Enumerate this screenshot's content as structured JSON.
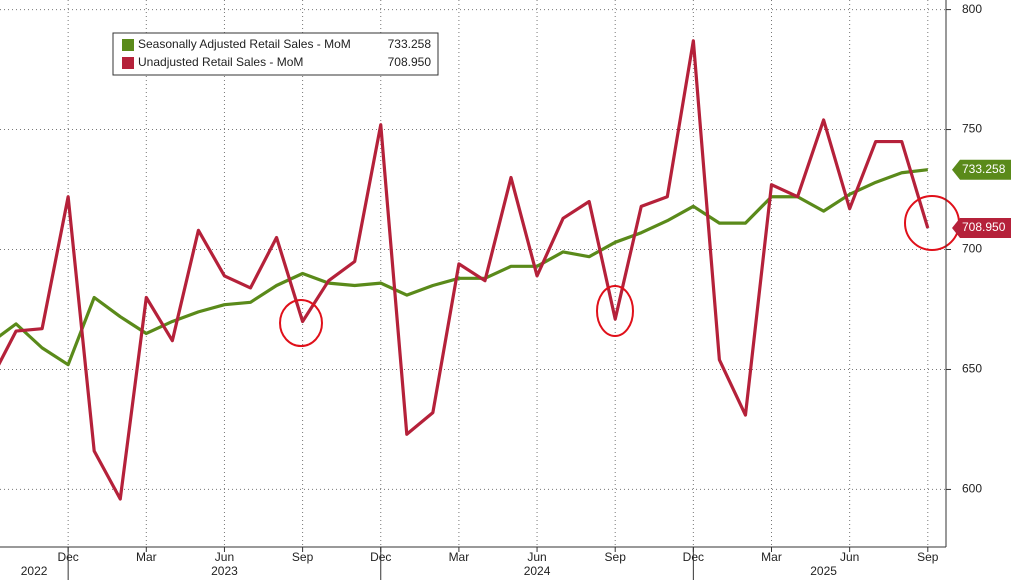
{
  "chart_data": {
    "type": "line",
    "categories": [
      null,
      null,
      null,
      "Dec",
      null,
      null,
      "Mar",
      null,
      null,
      "Jun",
      null,
      null,
      "Sep",
      null,
      null,
      "Dec",
      null,
      null,
      "Mar",
      null,
      null,
      "Jun",
      null,
      null,
      "Sep",
      null,
      null,
      "Dec",
      null,
      null,
      "Mar",
      null,
      null,
      "Jun",
      null,
      null,
      "Sep"
    ],
    "years": [
      "2022",
      "2023",
      "2024",
      "2025"
    ],
    "series": [
      {
        "name": "Seasonally Adjusted Retail Sales - MoM",
        "color": "#5a8a1a",
        "values": [
          661,
          669,
          659,
          652,
          680,
          672,
          665,
          670,
          674,
          677,
          678,
          685,
          690,
          686,
          685,
          686,
          681,
          685,
          688,
          688,
          693,
          693,
          699,
          697,
          703,
          707,
          712,
          718,
          711,
          711,
          722,
          722,
          716,
          723,
          728,
          732,
          733.258
        ]
      },
      {
        "name": "Unadjusted Retail Sales - MoM",
        "color": "#b5213a",
        "values": [
          645,
          666,
          667,
          722,
          616,
          596,
          680,
          662,
          708,
          689,
          684,
          705,
          670,
          687,
          695,
          752,
          623,
          632,
          694,
          687,
          730,
          689,
          713,
          720,
          671,
          718,
          722,
          787,
          654,
          631,
          727,
          722,
          754,
          717,
          745,
          745,
          708.95
        ],
        "value_labels": [
          null,
          null,
          null,
          null,
          null,
          null,
          null,
          null,
          null,
          null,
          null,
          null,
          null,
          null,
          null,
          null,
          null,
          null,
          null,
          null,
          null,
          null,
          null,
          null,
          null,
          null,
          null,
          null,
          null,
          null,
          null,
          null,
          null,
          null,
          null,
          null,
          "708.950"
        ]
      }
    ],
    "ylim": [
      576,
      804
    ],
    "yticks": [
      600,
      650,
      700,
      750,
      800
    ],
    "grid": true
  }
}
